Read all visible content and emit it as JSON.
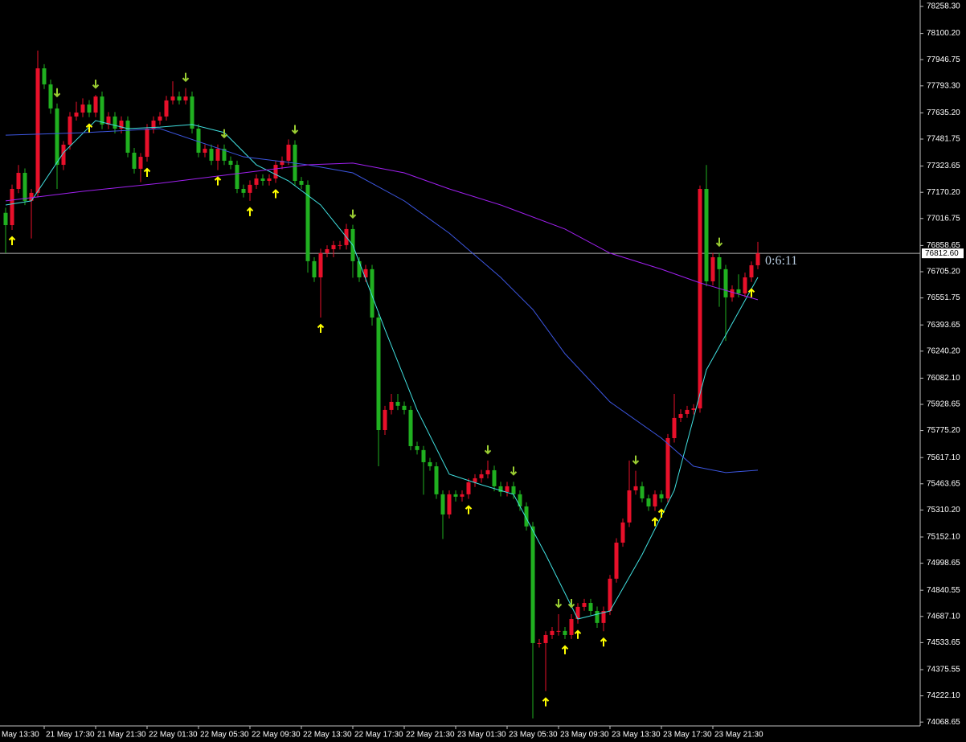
{
  "chart_data": {
    "type": "candlestick",
    "up_color": "#e8102a",
    "down_color": "#20b020",
    "open": [
      77050,
      76978,
      77190,
      77284,
      77120,
      77167,
      77896,
      77802,
      77661,
      77331,
      77449,
      77614,
      77637,
      77684,
      77637,
      77731,
      77567,
      77614,
      77543,
      77590,
      77402,
      77308,
      77378,
      77543,
      77590,
      77614,
      77708,
      77731,
      77708,
      77731,
      77543,
      77402,
      77425,
      77355,
      77425,
      77355,
      77331,
      77190,
      77167,
      77214,
      77251,
      77237,
      77251,
      77331,
      77355,
      77449,
      77237,
      77214,
      76767,
      76672,
      76814,
      76837,
      76861,
      76861,
      76955,
      76767,
      76672,
      76720,
      76437,
      75778,
      75896,
      75943,
      75920,
      75896,
      75684,
      75661,
      75590,
      75566,
      75402,
      75284,
      75402,
      75388,
      75402,
      75472,
      75496,
      75519,
      75543,
      75449,
      75416,
      75449,
      75402,
      75331,
      75214,
      74531,
      74531,
      74578,
      74602,
      74602,
      74578,
      74672,
      74743,
      74766,
      74719,
      74649,
      74719,
      74908,
      75119,
      75237,
      75425,
      75449,
      75378,
      75331,
      75402,
      75378,
      75731,
      75849,
      75872,
      75896,
      75905,
      77190,
      76649,
      76790,
      76720,
      76555,
      76602,
      76578,
      76672,
      76743
    ],
    "high": [
      77080,
      77215,
      77330,
      77310,
      77190,
      78000,
      77920,
      77830,
      77690,
      77470,
      77640,
      77700,
      77720,
      77710,
      77740,
      77760,
      77640,
      77640,
      77615,
      77615,
      77430,
      77400,
      77570,
      77615,
      77640,
      77735,
      77820,
      77760,
      77780,
      77760,
      77570,
      77450,
      77450,
      77450,
      77450,
      77380,
      77355,
      77215,
      77240,
      77275,
      77275,
      77275,
      77355,
      77380,
      77480,
      77475,
      77260,
      77240,
      76790,
      76840,
      76860,
      76885,
      76885,
      76985,
      76980,
      76790,
      76745,
      76745,
      76460,
      75920,
      75990,
      75990,
      75945,
      75920,
      75710,
      75685,
      75615,
      75590,
      75425,
      75425,
      75425,
      75425,
      75495,
      75520,
      75545,
      75600,
      75570,
      75475,
      75475,
      75475,
      75425,
      75355,
      75240,
      74555,
      74600,
      74625,
      74700,
      74625,
      74700,
      74765,
      74790,
      74790,
      74745,
      74745,
      74930,
      75145,
      75260,
      75600,
      75540,
      75475,
      75400,
      75425,
      75425,
      75755,
      75990,
      75900,
      75920,
      75930,
      77210,
      77330,
      76815,
      76815,
      76745,
      76625,
      76690,
      76700,
      76765,
      76880
    ],
    "low": [
      76814,
      76950,
      77165,
      77095,
      76900,
      77140,
      77775,
      77630,
      77190,
      77300,
      77420,
      77590,
      77610,
      77610,
      77610,
      77540,
      77540,
      77515,
      77515,
      77375,
      77280,
      77230,
      77350,
      77515,
      77565,
      77590,
      77685,
      77685,
      77685,
      77515,
      77375,
      77375,
      77330,
      77300,
      77330,
      77305,
      77165,
      77140,
      77120,
      77190,
      77210,
      77210,
      77225,
      77305,
      77330,
      77210,
      77190,
      76700,
      76645,
      76437,
      76790,
      76790,
      76835,
      76835,
      76670,
      76645,
      76645,
      76390,
      75566,
      75750,
      75870,
      75895,
      75870,
      75660,
      75635,
      75400,
      75540,
      75375,
      75140,
      75260,
      75360,
      75360,
      75375,
      75445,
      75470,
      75495,
      75420,
      75390,
      75390,
      75375,
      75305,
      75190,
      74090,
      74505,
      74250,
      74555,
      74575,
      74555,
      74555,
      74645,
      74720,
      74695,
      74620,
      74600,
      74695,
      74885,
      75095,
      75210,
      75400,
      75355,
      75305,
      75305,
      75355,
      75355,
      75705,
      75825,
      75850,
      75870,
      75880,
      76620,
      76625,
      76500,
      76300,
      76530,
      76555,
      76555,
      76645,
      76720
    ],
    "close": [
      76978,
      77190,
      77284,
      77120,
      77167,
      77896,
      77802,
      77661,
      77331,
      77449,
      77614,
      77637,
      77684,
      77637,
      77731,
      77567,
      77614,
      77543,
      77590,
      77402,
      77308,
      77378,
      77543,
      77590,
      77614,
      77708,
      77731,
      77708,
      77731,
      77543,
      77402,
      77425,
      77355,
      77425,
      77355,
      77331,
      77190,
      77167,
      77214,
      77251,
      77237,
      77251,
      77331,
      77355,
      77449,
      77237,
      77214,
      76767,
      76672,
      76814,
      76837,
      76861,
      76861,
      76955,
      76767,
      76672,
      76720,
      76437,
      75778,
      75896,
      75943,
      75920,
      75896,
      75684,
      75661,
      75590,
      75566,
      75402,
      75284,
      75402,
      75388,
      75402,
      75472,
      75496,
      75519,
      75543,
      75449,
      75416,
      75449,
      75402,
      75331,
      75214,
      74531,
      74531,
      74578,
      74602,
      74602,
      74578,
      74672,
      74743,
      74766,
      74719,
      74649,
      74719,
      74908,
      75119,
      75237,
      75425,
      75449,
      75378,
      75331,
      75402,
      75378,
      75731,
      75849,
      75872,
      75896,
      75905,
      77190,
      76649,
      76790,
      76720,
      76555,
      76602,
      76578,
      76672,
      76743,
      76812.6
    ],
    "overlays": [
      {
        "color": "#40e0e0",
        "x": [
          0,
          4,
          9,
          14,
          19,
          24,
          29,
          34,
          39,
          44,
          49,
          54,
          59,
          64,
          69,
          74,
          79,
          84,
          89,
          94,
          99,
          104,
          109,
          117
        ],
        "values": [
          77096,
          77120,
          77402,
          77590,
          77543,
          77552,
          77567,
          77520,
          77331,
          77237,
          77096,
          76861,
          76367,
          75896,
          75520,
          75458,
          75402,
          75049,
          74672,
          74719,
          75049,
          75425,
          76131,
          76672
        ]
      },
      {
        "color": "#3c56e0",
        "x": [
          0,
          12,
          24,
          37,
          47,
          54,
          62,
          69,
          77,
          82,
          87,
          94,
          102,
          107,
          112,
          117
        ],
        "values": [
          77505,
          77519,
          77543,
          77378,
          77331,
          77284,
          77120,
          76931,
          76672,
          76484,
          76225,
          75943,
          75731,
          75566,
          75529,
          75543
        ]
      },
      {
        "color": "#a020f0",
        "x": [
          0,
          12,
          24,
          37,
          47,
          54,
          62,
          69,
          77,
          87,
          94,
          102,
          108,
          117
        ],
        "values": [
          77120,
          77176,
          77223,
          77284,
          77331,
          77341,
          77284,
          77190,
          77096,
          76955,
          76814,
          76720,
          76640,
          76541
        ]
      }
    ],
    "signals": {
      "buy": {
        "color": "#ffff00",
        "x": [
          1,
          13,
          22,
          33,
          38,
          42,
          49,
          72,
          84,
          87,
          89,
          93,
          101,
          102,
          116
        ]
      },
      "sell": {
        "color": "#9acd32",
        "x": [
          8,
          14,
          28,
          34,
          45,
          54,
          75,
          79,
          86,
          88,
          98,
          111
        ]
      }
    },
    "ylim": [
      74046,
      78296
    ],
    "yticks": [
      {
        "value": 78258.3,
        "label": "78258.30"
      },
      {
        "value": 78100.2,
        "label": "78100.20"
      },
      77946.75,
      {
        "value": 77793.3,
        "label": "77793.30"
      },
      {
        "value": 77635.2,
        "label": "77635.20"
      },
      77481.75,
      77323.65,
      {
        "value": 77170.2,
        "label": "77170.20"
      },
      77016.75,
      76858.65,
      {
        "value": 76705.2,
        "label": "76705.20"
      },
      76551.75,
      76393.65,
      {
        "value": 76240.2,
        "label": "76240.20"
      },
      {
        "value": 76082.1,
        "label": "76082.10"
      },
      75928.65,
      {
        "value": 75775.2,
        "label": "75775.20"
      },
      {
        "value": 75617.1,
        "label": "75617.10"
      },
      75463.65,
      {
        "value": 75310.2,
        "label": "75310.20"
      },
      {
        "value": 75152.1,
        "label": "75152.10"
      },
      74998.65,
      74840.55,
      {
        "value": 74687.1,
        "label": "74687.10"
      },
      74533.65,
      74375.55,
      {
        "value": 74222.1,
        "label": "74222.10"
      },
      74068.65
    ],
    "xticks": [
      {
        "value": -2,
        "label": "May 13:30"
      },
      {
        "value": 6,
        "label": "21 May 17:30"
      },
      {
        "value": 14,
        "label": "21 May 21:30"
      },
      {
        "value": 22,
        "label": "22 May 01:30"
      },
      {
        "value": 30,
        "label": "22 May 05:30"
      },
      {
        "value": 38,
        "label": "22 May 09:30"
      },
      {
        "value": 46,
        "label": "22 May 13:30"
      },
      {
        "value": 54,
        "label": "22 May 17:30"
      },
      {
        "value": 62,
        "label": "22 May 21:30"
      },
      {
        "value": 70,
        "label": "23 May 01:30"
      },
      {
        "value": 78,
        "label": "23 May 05:30"
      },
      {
        "value": 86,
        "label": "23 May 09:30"
      },
      {
        "value": 94,
        "label": "23 May 13:30"
      },
      {
        "value": 102,
        "label": "23 May 17:30"
      },
      {
        "value": 110,
        "label": "23 May 21:30"
      }
    ],
    "current_price": {
      "value": 76812.6,
      "label": "76812.60"
    },
    "countdown": "0:6:11"
  }
}
